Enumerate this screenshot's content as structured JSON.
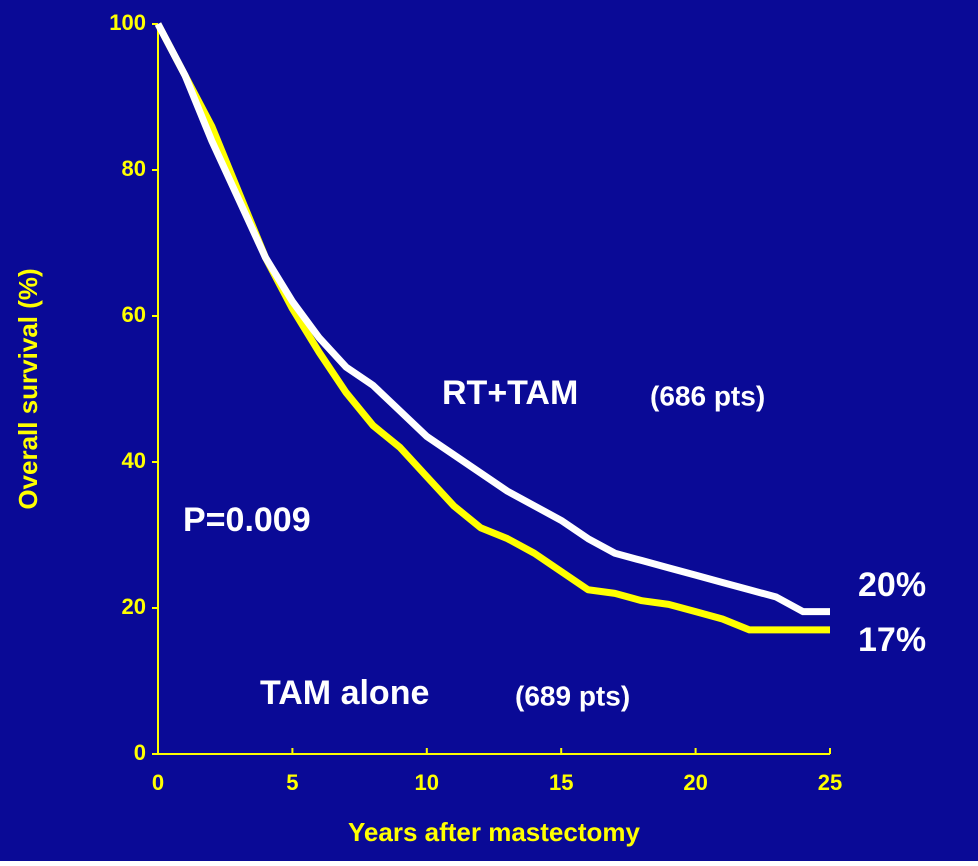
{
  "chart_data": {
    "type": "line",
    "x": [
      0,
      1,
      2,
      3,
      4,
      5,
      6,
      7,
      8,
      9,
      10,
      11,
      12,
      13,
      14,
      15,
      16,
      17,
      18,
      19,
      20,
      21,
      22,
      23,
      24,
      25
    ],
    "series": [
      {
        "name": "RT+TAM",
        "color": "#ffffff",
        "values": [
          100,
          93,
          84,
          76,
          68,
          62,
          57,
          53,
          50.5,
          47,
          43.5,
          41,
          38.5,
          36,
          34,
          32,
          29.5,
          27.5,
          26.5,
          25.5,
          24.5,
          23.5,
          22.5,
          21.5,
          19.5,
          19.5
        ]
      },
      {
        "name": "TAM alone",
        "color": "#ffff00",
        "values": [
          100,
          93,
          86,
          77,
          68,
          61,
          55,
          49.5,
          45,
          42,
          38,
          34,
          31,
          29.5,
          27.5,
          25,
          22.5,
          22,
          21,
          20.5,
          19.5,
          18.5,
          17,
          17,
          17,
          17
        ]
      }
    ],
    "xlim": [
      0,
      25
    ],
    "xticks": [
      0,
      5,
      10,
      15,
      20,
      25
    ],
    "ylim": [
      0,
      100
    ],
    "yticks": [
      0,
      20,
      40,
      60,
      80,
      100
    ],
    "xlabel": "Years after mastectomy",
    "ylabel": "Overall survival (%)",
    "axis_color": "#ffff00",
    "background": "#0a0a96",
    "annotations": [
      "RT+TAM",
      "(686 pts)",
      "P=0.009",
      "TAM alone",
      "(689 pts)",
      "20%",
      "17%"
    ]
  }
}
